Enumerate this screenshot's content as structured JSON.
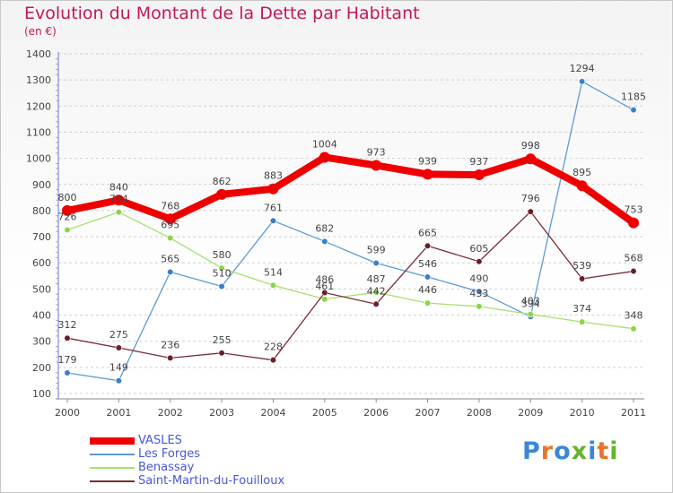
{
  "header": {
    "title": "Evolution du Montant de la Dette par Habitant",
    "subtitle": "(en €)"
  },
  "logo": {
    "text": "Proxiti",
    "letter_colors": [
      "#3a87d8",
      "#e8742a",
      "#3a87d8",
      "#66b32e",
      "#3a87d8",
      "#e8742a",
      "#66b32e"
    ]
  },
  "chart_data": {
    "type": "line",
    "title": "Evolution du Montant de la Dette par Habitant",
    "subtitle": "(en €)",
    "xlabel": "",
    "ylabel": "",
    "x": [
      "2000",
      "2001",
      "2002",
      "2003",
      "2004",
      "2005",
      "2006",
      "2007",
      "2008",
      "2009",
      "2010",
      "2011"
    ],
    "ylim": [
      100,
      1400
    ],
    "yticks": [
      100,
      200,
      300,
      400,
      500,
      600,
      700,
      800,
      900,
      1000,
      1100,
      1200,
      1300,
      1400
    ],
    "grid": "horizontal dashed",
    "legend_position": "bottom-left",
    "series": [
      {
        "name": "VASLES",
        "color": "#ee0000",
        "emphasis": "thick",
        "values": [
          800,
          840,
          768,
          862,
          883,
          1004,
          973,
          939,
          937,
          998,
          895,
          753
        ],
        "labels": [
          "800",
          "840",
          "768",
          "862",
          "883",
          "1004",
          "973",
          "939",
          "937",
          "998",
          "895",
          "753"
        ]
      },
      {
        "name": "Les Forges",
        "color": "#5b9bd5",
        "marker": "#3a7fc8",
        "values": [
          179,
          149,
          565,
          510,
          761,
          682,
          599,
          546,
          490,
          394,
          1294,
          1185
        ],
        "labels": [
          "179",
          "149",
          "565",
          "510",
          "761",
          "682",
          "599",
          "546",
          "490",
          "394",
          "1294",
          "1185"
        ]
      },
      {
        "name": "Benassay",
        "color": "#a6e06e",
        "marker": "#8cd448",
        "values": [
          726,
          794,
          695,
          580,
          514,
          461,
          487,
          446,
          433,
          403,
          374,
          348
        ],
        "labels": [
          "726",
          "794",
          "695",
          "580",
          "514",
          "461",
          "487",
          "446",
          "433",
          "403",
          "374",
          "348"
        ]
      },
      {
        "name": "Saint-Martin-du-Fouilloux",
        "color": "#7a2a35",
        "marker": "#6a1e26",
        "values": [
          312,
          275,
          236,
          255,
          228,
          486,
          442,
          665,
          605,
          796,
          539,
          568
        ],
        "labels": [
          "312",
          "275",
          "236",
          "255",
          "228",
          "486",
          "442",
          "665",
          "605",
          "796",
          "539",
          "568"
        ]
      }
    ]
  }
}
